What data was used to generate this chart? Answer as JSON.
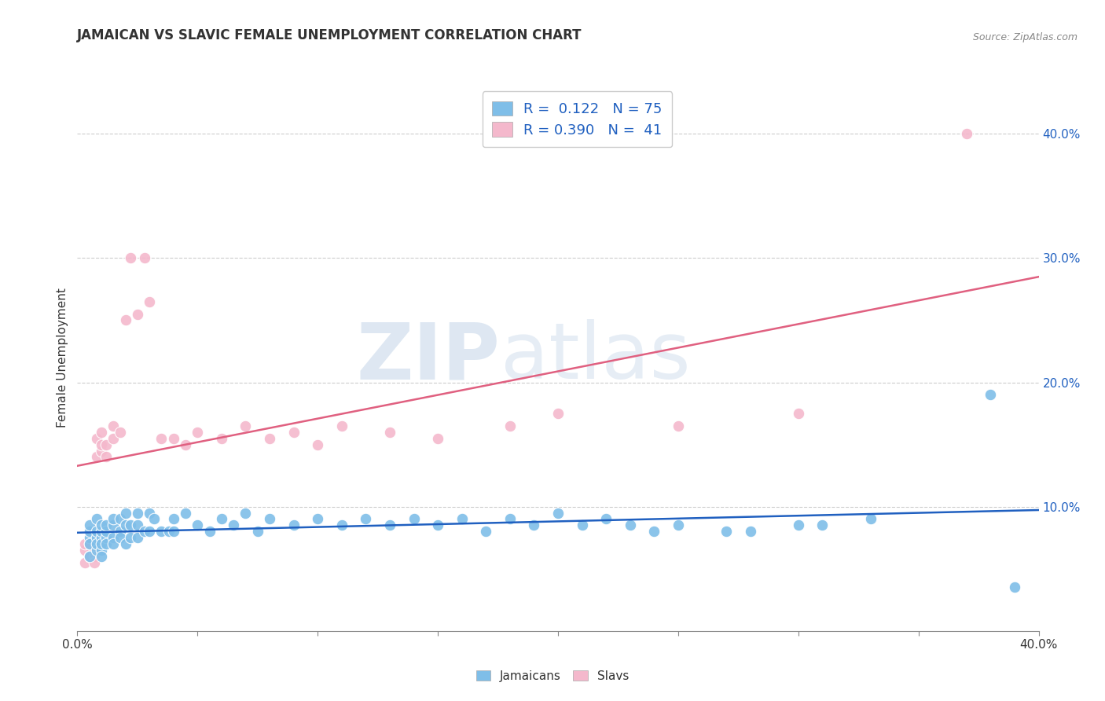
{
  "title": "JAMAICAN VS SLAVIC FEMALE UNEMPLOYMENT CORRELATION CHART",
  "source": "Source: ZipAtlas.com",
  "ylabel": "Female Unemployment",
  "xlim": [
    0.0,
    0.4
  ],
  "ylim": [
    0.0,
    0.44
  ],
  "yticks_right": [
    0.1,
    0.2,
    0.3,
    0.4
  ],
  "ytick_labels_right": [
    "10.0%",
    "20.0%",
    "30.0%",
    "40.0%"
  ],
  "blue_color": "#7fbee8",
  "pink_color": "#f4b8cc",
  "blue_line_color": "#2060c0",
  "pink_line_color": "#e06080",
  "legend_text_color": "#2060c0",
  "r_blue": 0.122,
  "n_blue": 75,
  "r_pink": 0.39,
  "n_pink": 41,
  "watermark_zip": "ZIP",
  "watermark_atlas": "atlas",
  "grid_color": "#cccccc",
  "background_color": "#ffffff",
  "blue_scatter_x": [
    0.005,
    0.005,
    0.005,
    0.005,
    0.005,
    0.008,
    0.008,
    0.008,
    0.008,
    0.008,
    0.01,
    0.01,
    0.01,
    0.01,
    0.01,
    0.01,
    0.012,
    0.012,
    0.012,
    0.012,
    0.015,
    0.015,
    0.015,
    0.015,
    0.018,
    0.018,
    0.018,
    0.02,
    0.02,
    0.02,
    0.022,
    0.022,
    0.025,
    0.025,
    0.025,
    0.028,
    0.03,
    0.03,
    0.032,
    0.035,
    0.038,
    0.04,
    0.04,
    0.045,
    0.05,
    0.055,
    0.06,
    0.065,
    0.07,
    0.075,
    0.08,
    0.09,
    0.1,
    0.11,
    0.12,
    0.13,
    0.14,
    0.15,
    0.16,
    0.17,
    0.18,
    0.19,
    0.2,
    0.21,
    0.22,
    0.23,
    0.24,
    0.25,
    0.27,
    0.28,
    0.3,
    0.31,
    0.33,
    0.39,
    0.38
  ],
  "blue_scatter_y": [
    0.06,
    0.075,
    0.08,
    0.085,
    0.07,
    0.065,
    0.075,
    0.08,
    0.09,
    0.07,
    0.065,
    0.075,
    0.08,
    0.085,
    0.07,
    0.06,
    0.075,
    0.08,
    0.085,
    0.07,
    0.075,
    0.085,
    0.09,
    0.07,
    0.08,
    0.09,
    0.075,
    0.085,
    0.095,
    0.07,
    0.085,
    0.075,
    0.085,
    0.095,
    0.075,
    0.08,
    0.095,
    0.08,
    0.09,
    0.08,
    0.08,
    0.09,
    0.08,
    0.095,
    0.085,
    0.08,
    0.09,
    0.085,
    0.095,
    0.08,
    0.09,
    0.085,
    0.09,
    0.085,
    0.09,
    0.085,
    0.09,
    0.085,
    0.09,
    0.08,
    0.09,
    0.085,
    0.095,
    0.085,
    0.09,
    0.085,
    0.08,
    0.085,
    0.08,
    0.08,
    0.085,
    0.085,
    0.09,
    0.035,
    0.19
  ],
  "pink_scatter_x": [
    0.003,
    0.003,
    0.003,
    0.005,
    0.005,
    0.005,
    0.007,
    0.007,
    0.007,
    0.008,
    0.008,
    0.01,
    0.01,
    0.01,
    0.012,
    0.012,
    0.015,
    0.015,
    0.018,
    0.02,
    0.022,
    0.025,
    0.028,
    0.03,
    0.035,
    0.04,
    0.045,
    0.05,
    0.06,
    0.07,
    0.08,
    0.09,
    0.1,
    0.11,
    0.13,
    0.15,
    0.18,
    0.2,
    0.25,
    0.3,
    0.37
  ],
  "pink_scatter_y": [
    0.055,
    0.065,
    0.07,
    0.06,
    0.07,
    0.06,
    0.065,
    0.06,
    0.055,
    0.14,
    0.155,
    0.145,
    0.16,
    0.15,
    0.15,
    0.14,
    0.165,
    0.155,
    0.16,
    0.25,
    0.3,
    0.255,
    0.3,
    0.265,
    0.155,
    0.155,
    0.15,
    0.16,
    0.155,
    0.165,
    0.155,
    0.16,
    0.15,
    0.165,
    0.16,
    0.155,
    0.165,
    0.175,
    0.165,
    0.175,
    0.4
  ]
}
